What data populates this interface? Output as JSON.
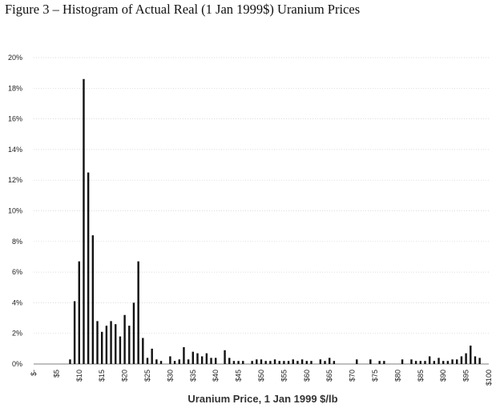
{
  "figure": {
    "title": "Figure 3 – Histogram of Actual Real (1 Jan 1999$) Uranium Prices"
  },
  "chart_data": {
    "type": "bar",
    "title": "",
    "xlabel": "Uranium Price, 1 Jan 1999 $/lb",
    "ylabel": "",
    "ylim": [
      0,
      0.2
    ],
    "xlim": [
      0,
      100
    ],
    "grid": true,
    "legend": "none",
    "bar_color": "#111111",
    "y_ticks": [
      {
        "value": 0.0,
        "label": "0%"
      },
      {
        "value": 0.02,
        "label": "2%"
      },
      {
        "value": 0.04,
        "label": "4%"
      },
      {
        "value": 0.06,
        "label": "6%"
      },
      {
        "value": 0.08,
        "label": "8%"
      },
      {
        "value": 0.1,
        "label": "10%"
      },
      {
        "value": 0.12,
        "label": "12%"
      },
      {
        "value": 0.14,
        "label": "14%"
      },
      {
        "value": 0.16,
        "label": "16%"
      },
      {
        "value": 0.18,
        "label": "18%"
      },
      {
        "value": 0.2,
        "label": "20%"
      }
    ],
    "x_ticks": [
      {
        "value": 0,
        "label": "$-"
      },
      {
        "value": 5,
        "label": "$5"
      },
      {
        "value": 10,
        "label": "$10"
      },
      {
        "value": 15,
        "label": "$15"
      },
      {
        "value": 20,
        "label": "$20"
      },
      {
        "value": 25,
        "label": "$25"
      },
      {
        "value": 30,
        "label": "$30"
      },
      {
        "value": 35,
        "label": "$35"
      },
      {
        "value": 40,
        "label": "$40"
      },
      {
        "value": 45,
        "label": "$45"
      },
      {
        "value": 50,
        "label": "$50"
      },
      {
        "value": 55,
        "label": "$55"
      },
      {
        "value": 60,
        "label": "$60"
      },
      {
        "value": 65,
        "label": "$65"
      },
      {
        "value": 70,
        "label": "$70"
      },
      {
        "value": 75,
        "label": "$75"
      },
      {
        "value": 80,
        "label": "$80"
      },
      {
        "value": 85,
        "label": "$85"
      },
      {
        "value": 90,
        "label": "$90"
      },
      {
        "value": 95,
        "label": "$95"
      },
      {
        "value": 100,
        "label": "$100"
      }
    ],
    "x": [
      8,
      9,
      10,
      11,
      12,
      13,
      14,
      15,
      16,
      17,
      18,
      19,
      20,
      21,
      22,
      23,
      24,
      25,
      26,
      27,
      28,
      30,
      31,
      32,
      33,
      34,
      35,
      36,
      37,
      38,
      39,
      40,
      42,
      43,
      44,
      45,
      46,
      48,
      49,
      50,
      51,
      52,
      53,
      54,
      55,
      56,
      57,
      58,
      59,
      60,
      61,
      63,
      64,
      65,
      66,
      71,
      74,
      76,
      77,
      81,
      83,
      84,
      85,
      86,
      87,
      88,
      89,
      90,
      91,
      92,
      93,
      94,
      95,
      96,
      97,
      98
    ],
    "values": [
      0.003,
      0.041,
      0.067,
      0.186,
      0.125,
      0.084,
      0.028,
      0.021,
      0.025,
      0.028,
      0.026,
      0.018,
      0.032,
      0.025,
      0.04,
      0.067,
      0.017,
      0.004,
      0.01,
      0.003,
      0.002,
      0.005,
      0.002,
      0.003,
      0.011,
      0.003,
      0.008,
      0.007,
      0.005,
      0.007,
      0.004,
      0.004,
      0.009,
      0.004,
      0.002,
      0.002,
      0.002,
      0.002,
      0.003,
      0.003,
      0.002,
      0.002,
      0.003,
      0.002,
      0.002,
      0.002,
      0.003,
      0.002,
      0.003,
      0.002,
      0.002,
      0.003,
      0.002,
      0.004,
      0.002,
      0.003,
      0.003,
      0.002,
      0.002,
      0.003,
      0.003,
      0.002,
      0.002,
      0.002,
      0.005,
      0.002,
      0.004,
      0.002,
      0.002,
      0.003,
      0.003,
      0.005,
      0.007,
      0.012,
      0.005,
      0.004
    ]
  }
}
